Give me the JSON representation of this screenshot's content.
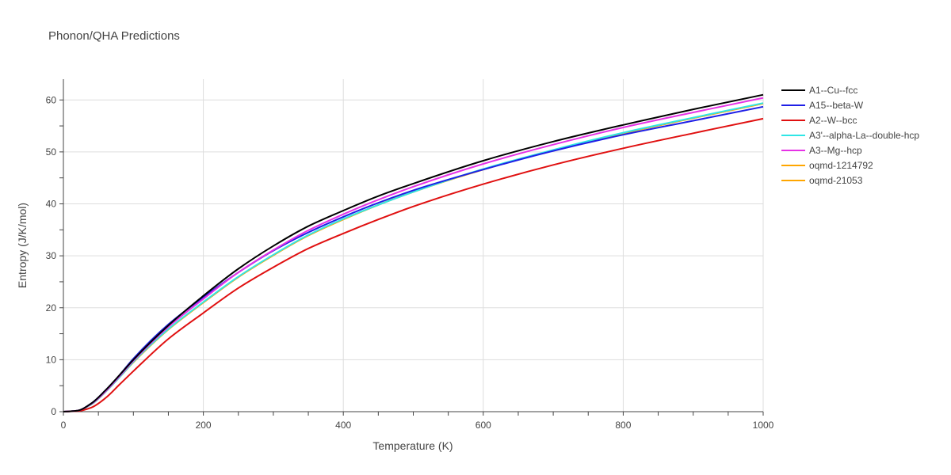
{
  "chart_data": {
    "type": "line",
    "title": "Phonon/QHA Predictions",
    "xlabel": "Temperature (K)",
    "ylabel": "Entropy (J/K/mol)",
    "xlim": [
      0,
      1000
    ],
    "ylim": [
      0,
      64
    ],
    "xticks": [
      0,
      200,
      400,
      600,
      800,
      1000
    ],
    "yticks": [
      0,
      10,
      20,
      30,
      40,
      50,
      60
    ],
    "grid": true,
    "legend_position": "right",
    "x": [
      0,
      20,
      40,
      60,
      80,
      100,
      150,
      200,
      250,
      300,
      350,
      400,
      450,
      500,
      600,
      700,
      800,
      900,
      1000
    ],
    "series": [
      {
        "name": "A1--Cu--fcc",
        "color": "#000000",
        "values": [
          0,
          0.2,
          1.6,
          4.1,
          7.0,
          10.0,
          16.6,
          22.3,
          27.5,
          31.9,
          35.7,
          38.7,
          41.5,
          43.9,
          48.3,
          52.0,
          55.2,
          58.2,
          61.0
        ]
      },
      {
        "name": "A15--beta-W",
        "color": "#1f1fe6",
        "values": [
          0,
          0.2,
          1.6,
          4.1,
          7.0,
          10.2,
          16.8,
          22.0,
          26.8,
          31.0,
          34.5,
          37.5,
          40.2,
          42.6,
          46.6,
          50.2,
          53.3,
          56.0,
          58.7
        ]
      },
      {
        "name": "A2--W--bcc",
        "color": "#e01010",
        "values": [
          0,
          0.1,
          0.8,
          2.6,
          5.2,
          7.8,
          14.0,
          19.0,
          23.8,
          27.8,
          31.4,
          34.3,
          37.0,
          39.5,
          43.8,
          47.5,
          50.7,
          53.6,
          56.4
        ]
      },
      {
        "name": "A3'--alpha-La--double-hcp",
        "color": "#2fe6e6",
        "values": [
          0,
          0.2,
          1.4,
          3.8,
          6.6,
          9.6,
          15.9,
          21.1,
          26.0,
          30.2,
          34.0,
          37.1,
          39.8,
          42.3,
          46.7,
          50.4,
          53.7,
          56.6,
          59.4
        ]
      },
      {
        "name": "A3--Mg--hcp",
        "color": "#e632e6",
        "values": [
          0,
          0.2,
          1.5,
          3.9,
          6.8,
          9.8,
          16.3,
          21.7,
          26.8,
          31.1,
          34.9,
          38.0,
          40.8,
          43.3,
          47.7,
          51.4,
          54.7,
          57.6,
          60.4
        ]
      },
      {
        "name": "oqmd-1214792",
        "color": "#ffa600",
        "values": [
          0,
          0.2,
          1.4,
          3.8,
          6.6,
          9.5,
          15.8,
          21.0,
          25.9,
          30.1,
          33.9,
          37.0,
          39.8,
          42.3,
          46.6,
          50.3,
          53.6,
          56.5,
          59.3
        ]
      },
      {
        "name": "oqmd-21053",
        "color": "#ffa600",
        "values": [
          0,
          0.2,
          1.4,
          3.8,
          6.6,
          9.5,
          15.8,
          21.0,
          25.9,
          30.1,
          33.9,
          37.0,
          39.8,
          42.3,
          46.6,
          50.3,
          53.6,
          56.5,
          59.3
        ]
      }
    ]
  }
}
